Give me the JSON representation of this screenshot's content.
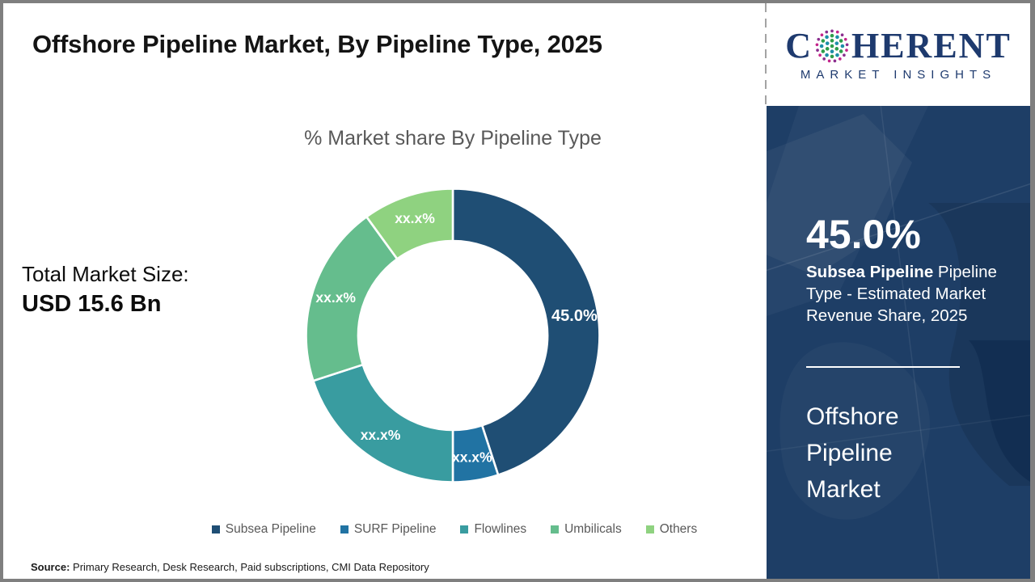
{
  "page": {
    "title": "Offshore Pipeline Market, By Pipeline Type, 2025",
    "source_label": "Source:",
    "source_text": " Primary Research, Desk Research, Paid subscriptions, CMI Data Repository"
  },
  "logo": {
    "name_start": "C",
    "name_end": "HERENT",
    "subtitle": "MARKET INSIGHTS",
    "globe_colors": [
      "#2E9E4B",
      "#1D8FA8",
      "#8A2E8E",
      "#C4258B"
    ],
    "text_color": "#1E3A6E"
  },
  "left": {
    "total_label": "Total Market Size:",
    "total_value": "USD 15.6 Bn"
  },
  "chart_data": {
    "type": "pie",
    "subtype": "donut",
    "title": "% Market share By Pipeline Type",
    "start_angle_deg": 0,
    "donut_hole_ratio": 0.64,
    "legend_position": "bottom",
    "note": "Only the leading segment value is disclosed; others are masked as xx.x%",
    "segments": [
      {
        "label": "Subsea Pipeline",
        "value": 45,
        "display": "45.0%",
        "color": "#1F4E74"
      },
      {
        "label": "SURF Pipeline",
        "value": 5,
        "display": "xx.x%",
        "color": "#2173A3"
      },
      {
        "label": "Flowlines",
        "value": 20,
        "display": "xx.x%",
        "color": "#399CA0"
      },
      {
        "label": "Umbilicals",
        "value": 20,
        "display": "xx.x%",
        "color": "#65BD8D"
      },
      {
        "label": "Others",
        "value": 10,
        "display": "xx.x%",
        "color": "#8FD280"
      }
    ]
  },
  "side_panel": {
    "bg_color": "#1E3E66",
    "stat_value": "45.0%",
    "stat_bold": "Subsea Pipeline",
    "stat_rest": "  Pipeline Type - Estimated Market Revenue Share, 2025",
    "market_name": "Offshore Pipeline Market"
  }
}
